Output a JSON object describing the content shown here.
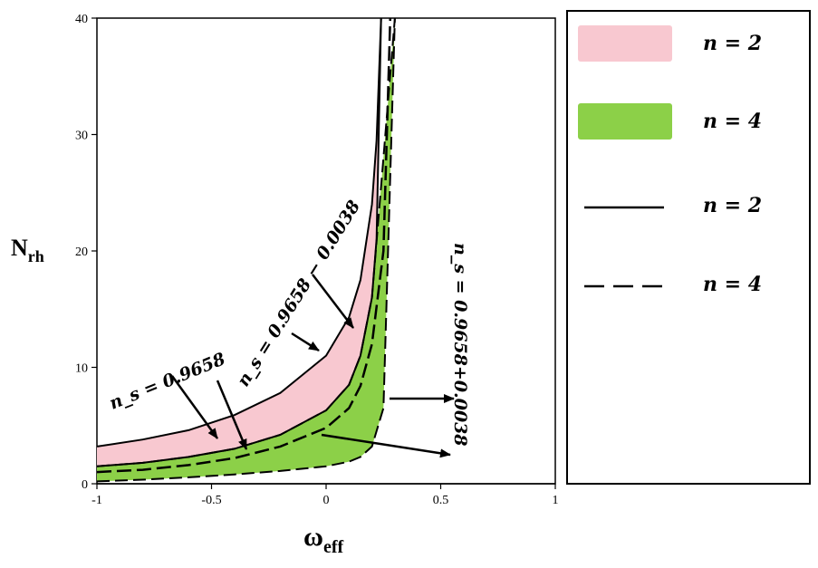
{
  "chart_data": {
    "type": "area",
    "xlabel": "ω",
    "xlabel_sub": "eff",
    "ylabel": "N",
    "ylabel_sub": "rh",
    "xlim": [
      -1,
      1
    ],
    "ylim": [
      0,
      40
    ],
    "x_ticks": [
      "-1",
      "-0.5",
      "0",
      "0.5",
      "1"
    ],
    "y_ticks": [
      "0",
      "10",
      "20",
      "30",
      "40"
    ],
    "grid": false,
    "legend_position": "right",
    "series": [
      {
        "name": "n = 2",
        "style": "filled-band",
        "color": "#f8c8d0",
        "x": [
          -1,
          -0.8,
          -0.6,
          -0.4,
          -0.2,
          0,
          0.1,
          0.15,
          0.2,
          0.22,
          0.24
        ],
        "upper": [
          3.2,
          3.8,
          4.6,
          5.9,
          7.8,
          11.0,
          14.3,
          17.5,
          24.0,
          29.5,
          40.0
        ],
        "lower": [
          1.5,
          1.8,
          2.3,
          3.0,
          4.2,
          6.3,
          8.5,
          11.0,
          16.0,
          21.0,
          40.0
        ]
      },
      {
        "name": "n = 4",
        "style": "filled-band",
        "color": "#8cd048",
        "x": [
          -1,
          -0.8,
          -0.6,
          -0.4,
          -0.2,
          0,
          0.1,
          0.15,
          0.2,
          0.25,
          0.3
        ],
        "upper": [
          1.5,
          1.8,
          2.3,
          3.0,
          4.2,
          6.3,
          8.5,
          11.0,
          16.0,
          28.0,
          40.0
        ],
        "lower": [
          0.2,
          0.35,
          0.55,
          0.8,
          1.1,
          1.5,
          1.9,
          2.3,
          3.2,
          6.5,
          40.0
        ]
      },
      {
        "name": "n = 2",
        "style": "solid-line",
        "color": "#000000"
      },
      {
        "name": "n = 4",
        "style": "dashed-line",
        "color": "#000000"
      }
    ],
    "annotations": [
      "n_s = 0.9658",
      "n_s = 0.9658 − 0.0038",
      "n_s = 0.9658+0.0038"
    ]
  },
  "legend": [
    {
      "label": "n = 2",
      "swatch": "pink-box",
      "color": "#f8c8d0"
    },
    {
      "label": "n = 4",
      "swatch": "green-box",
      "color": "#8cd048"
    },
    {
      "label": "n = 2",
      "swatch": "solid-line",
      "color": "#000000"
    },
    {
      "label": "n = 4",
      "swatch": "dashed-line",
      "color": "#000000"
    }
  ]
}
